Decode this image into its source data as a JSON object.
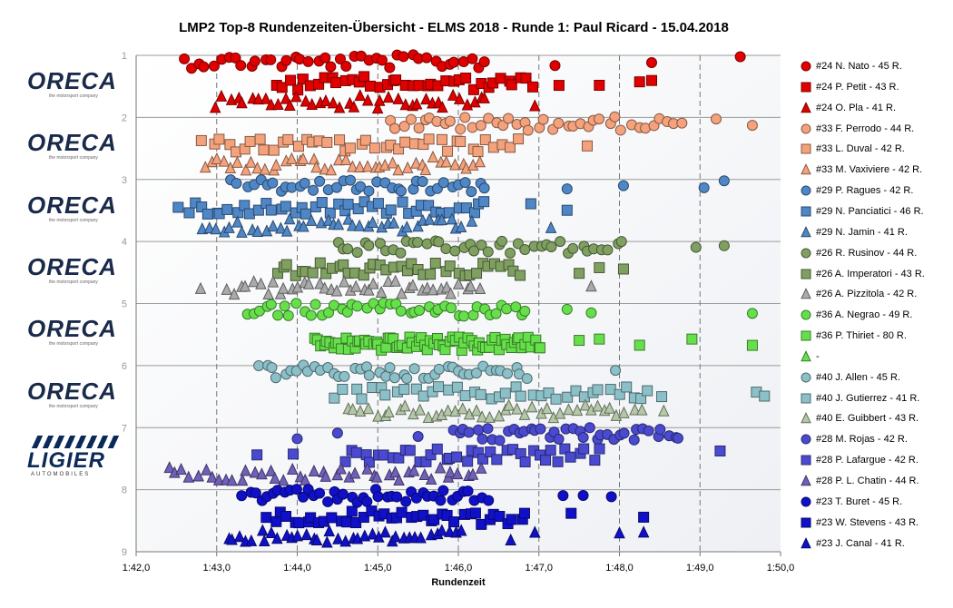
{
  "chart_data": {
    "type": "scatter",
    "title": "LMP2  Top-8  Rundenzeiten-Übersicht   - ELMS  2018  - Runde  1: Paul  Ricard  - 15.04.2018",
    "xlabel": "Rundenzeit",
    "xlim": [
      102,
      110
    ],
    "ylim": [
      1,
      9
    ],
    "x_ticks": [
      "1:42,0",
      "1:43,0",
      "1:44,0",
      "1:45,0",
      "1:46,0",
      "1:47,0",
      "1:48,0",
      "1:49,0",
      "1:50,0"
    ],
    "y_ticks": [
      "1",
      "2",
      "3",
      "4",
      "5",
      "6",
      "7",
      "8",
      "9"
    ],
    "grid": true,
    "legend_position": "right",
    "logos": [
      {
        "brand": "ORECA",
        "tagline": "the motorsport company",
        "row": 1
      },
      {
        "brand": "ORECA",
        "tagline": "the motorsport company",
        "row": 2
      },
      {
        "brand": "ORECA",
        "tagline": "the motorsport company",
        "row": 3
      },
      {
        "brand": "ORECA",
        "tagline": "the motorsport company",
        "row": 4
      },
      {
        "brand": "ORECA",
        "tagline": "the motorsport company",
        "row": 5
      },
      {
        "brand": "ORECA",
        "tagline": "the motorsport company",
        "row": 6
      },
      {
        "brand": "LIGIER",
        "tagline": "AUTOMOBILES",
        "row": 7
      }
    ],
    "series": [
      {
        "name": "#24 N. Nato - 45 R.",
        "marker": "circle",
        "color": "#e00000",
        "y": 1.1,
        "x_min": 102.55,
        "x_max": 106.4,
        "count": 45,
        "outliers": [
          107.2,
          108.4,
          109.5
        ]
      },
      {
        "name": "#24 P. Petit - 43 R.",
        "marker": "square",
        "color": "#e00000",
        "y": 1.45,
        "x_min": 103.7,
        "x_max": 107.0,
        "count": 43,
        "outliers": [
          107.25,
          107.75,
          108.25,
          108.4
        ]
      },
      {
        "name": "#24 O. Pla - 41 R.",
        "marker": "triangle",
        "color": "#e00000",
        "y": 1.75,
        "x_min": 102.95,
        "x_max": 106.4,
        "count": 41,
        "outliers": [
          106.95
        ]
      },
      {
        "name": "#33 F. Perrodo - 44 R.",
        "marker": "circle",
        "color": "#f4a27c",
        "y": 2.1,
        "x_min": 105.1,
        "x_max": 108.8,
        "count": 44,
        "outliers": [
          109.2,
          109.65
        ]
      },
      {
        "name": "#33 L. Duval - 42 R.",
        "marker": "square",
        "color": "#f4a27c",
        "y": 2.45,
        "x_min": 102.8,
        "x_max": 106.8,
        "count": 42,
        "outliers": [
          107.6
        ]
      },
      {
        "name": "#33 M. Vaxiviere - 42 R.",
        "marker": "triangle",
        "color": "#f4a27c",
        "y": 2.75,
        "x_min": 102.8,
        "x_max": 106.35,
        "count": 42,
        "outliers": []
      },
      {
        "name": "#29 P. Ragues - 42 R.",
        "marker": "circle",
        "color": "#4f86c6",
        "y": 3.1,
        "x_min": 103.15,
        "x_max": 106.4,
        "count": 42,
        "outliers": [
          107.35,
          108.05,
          109.05,
          109.3
        ]
      },
      {
        "name": "#29 N. Panciatici - 46 R.",
        "marker": "square",
        "color": "#4f86c6",
        "y": 3.45,
        "x_min": 102.5,
        "x_max": 106.4,
        "count": 46,
        "outliers": [
          106.9,
          107.35
        ]
      },
      {
        "name": "#29 N. Jamin - 41 R.",
        "marker": "triangle",
        "color": "#4f86c6",
        "y": 3.75,
        "x_min": 102.8,
        "x_max": 106.2,
        "count": 41,
        "outliers": [
          107.15
        ]
      },
      {
        "name": "#26 R. Rusinov - 44 R.",
        "marker": "circle",
        "color": "#7fa060",
        "y": 4.1,
        "x_min": 104.45,
        "x_max": 108.1,
        "count": 44,
        "outliers": [
          108.95,
          109.3
        ]
      },
      {
        "name": "#26 A. Imperatori - 43 R.",
        "marker": "square",
        "color": "#7fa060",
        "y": 4.45,
        "x_min": 103.7,
        "x_max": 106.8,
        "count": 43,
        "outliers": [
          107.5,
          107.75,
          108.05
        ]
      },
      {
        "name": "#26 A. Pizzitola - 42 R.",
        "marker": "triangle",
        "color": "#aaaaaa",
        "y": 4.75,
        "x_min": 103.1,
        "x_max": 106.3,
        "count": 42,
        "outliers": [
          102.8,
          107.65
        ]
      },
      {
        "name": "#36 A. Negrao - 49 R.",
        "marker": "circle",
        "color": "#66e04a",
        "y": 5.1,
        "x_min": 103.35,
        "x_max": 106.9,
        "count": 49,
        "outliers": [
          107.35,
          107.65,
          109.65
        ]
      },
      {
        "name": "#36 P. Thiriet - 80 R.",
        "marker": "square",
        "color": "#66e04a",
        "y": 5.65,
        "x_min": 104.2,
        "x_max": 107.05,
        "count": 80,
        "outliers": [
          107.5,
          107.75,
          108.25,
          108.9,
          109.65
        ]
      },
      {
        "name": "-",
        "marker": "triangle",
        "color": "#66e04a",
        "y": null,
        "x_min": null,
        "x_max": null,
        "count": 0,
        "outliers": []
      },
      {
        "name": "#40 J. Allen - 45 R.",
        "marker": "circle",
        "color": "#8cc0c8",
        "y": 6.1,
        "x_min": 103.5,
        "x_max": 106.9,
        "count": 45,
        "outliers": [
          107.95
        ]
      },
      {
        "name": "#40 J. Gutierrez - 41 R.",
        "marker": "square",
        "color": "#8cc0c8",
        "y": 6.45,
        "x_min": 104.45,
        "x_max": 108.55,
        "count": 41,
        "outliers": [
          109.7,
          109.8
        ]
      },
      {
        "name": "#40 E. Guibbert - 43 R.",
        "marker": "triangle",
        "color": "#b4c8a8",
        "y": 6.75,
        "x_min": 104.6,
        "x_max": 108.3,
        "count": 43,
        "outliers": [
          108.55
        ]
      },
      {
        "name": "#28 M. Rojas - 42 R.",
        "marker": "circle",
        "color": "#4a4ad0",
        "y": 7.1,
        "x_min": 105.9,
        "x_max": 108.8,
        "count": 42,
        "outliers": [
          104.0,
          104.5,
          105.5
        ]
      },
      {
        "name": "#28 P. Lafargue - 42 R.",
        "marker": "square",
        "color": "#4a4ad0",
        "y": 7.45,
        "x_min": 104.55,
        "x_max": 107.8,
        "count": 42,
        "outliers": [
          103.5,
          103.95,
          109.25
        ]
      },
      {
        "name": "#28 P. L. Chatin - 44 R.",
        "marker": "triangle",
        "color": "#7060b8",
        "y": 7.75,
        "x_min": 102.35,
        "x_max": 106.35,
        "count": 44,
        "outliers": []
      },
      {
        "name": "#23 T. Buret - 45 R.",
        "marker": "circle",
        "color": "#1010c8",
        "y": 8.1,
        "x_min": 103.3,
        "x_max": 106.4,
        "count": 45,
        "outliers": [
          107.3,
          107.55,
          107.9
        ]
      },
      {
        "name": "#23 W. Stevens - 43 R.",
        "marker": "square",
        "color": "#1010c8",
        "y": 8.45,
        "x_min": 103.6,
        "x_max": 106.9,
        "count": 43,
        "outliers": [
          107.4,
          108.3
        ]
      },
      {
        "name": "#23 J. Canal - 41 R.",
        "marker": "triangle",
        "color": "#1010c8",
        "y": 8.75,
        "x_min": 103.1,
        "x_max": 106.1,
        "count": 41,
        "outliers": [
          106.65,
          106.95,
          108.0,
          108.3
        ]
      }
    ]
  }
}
